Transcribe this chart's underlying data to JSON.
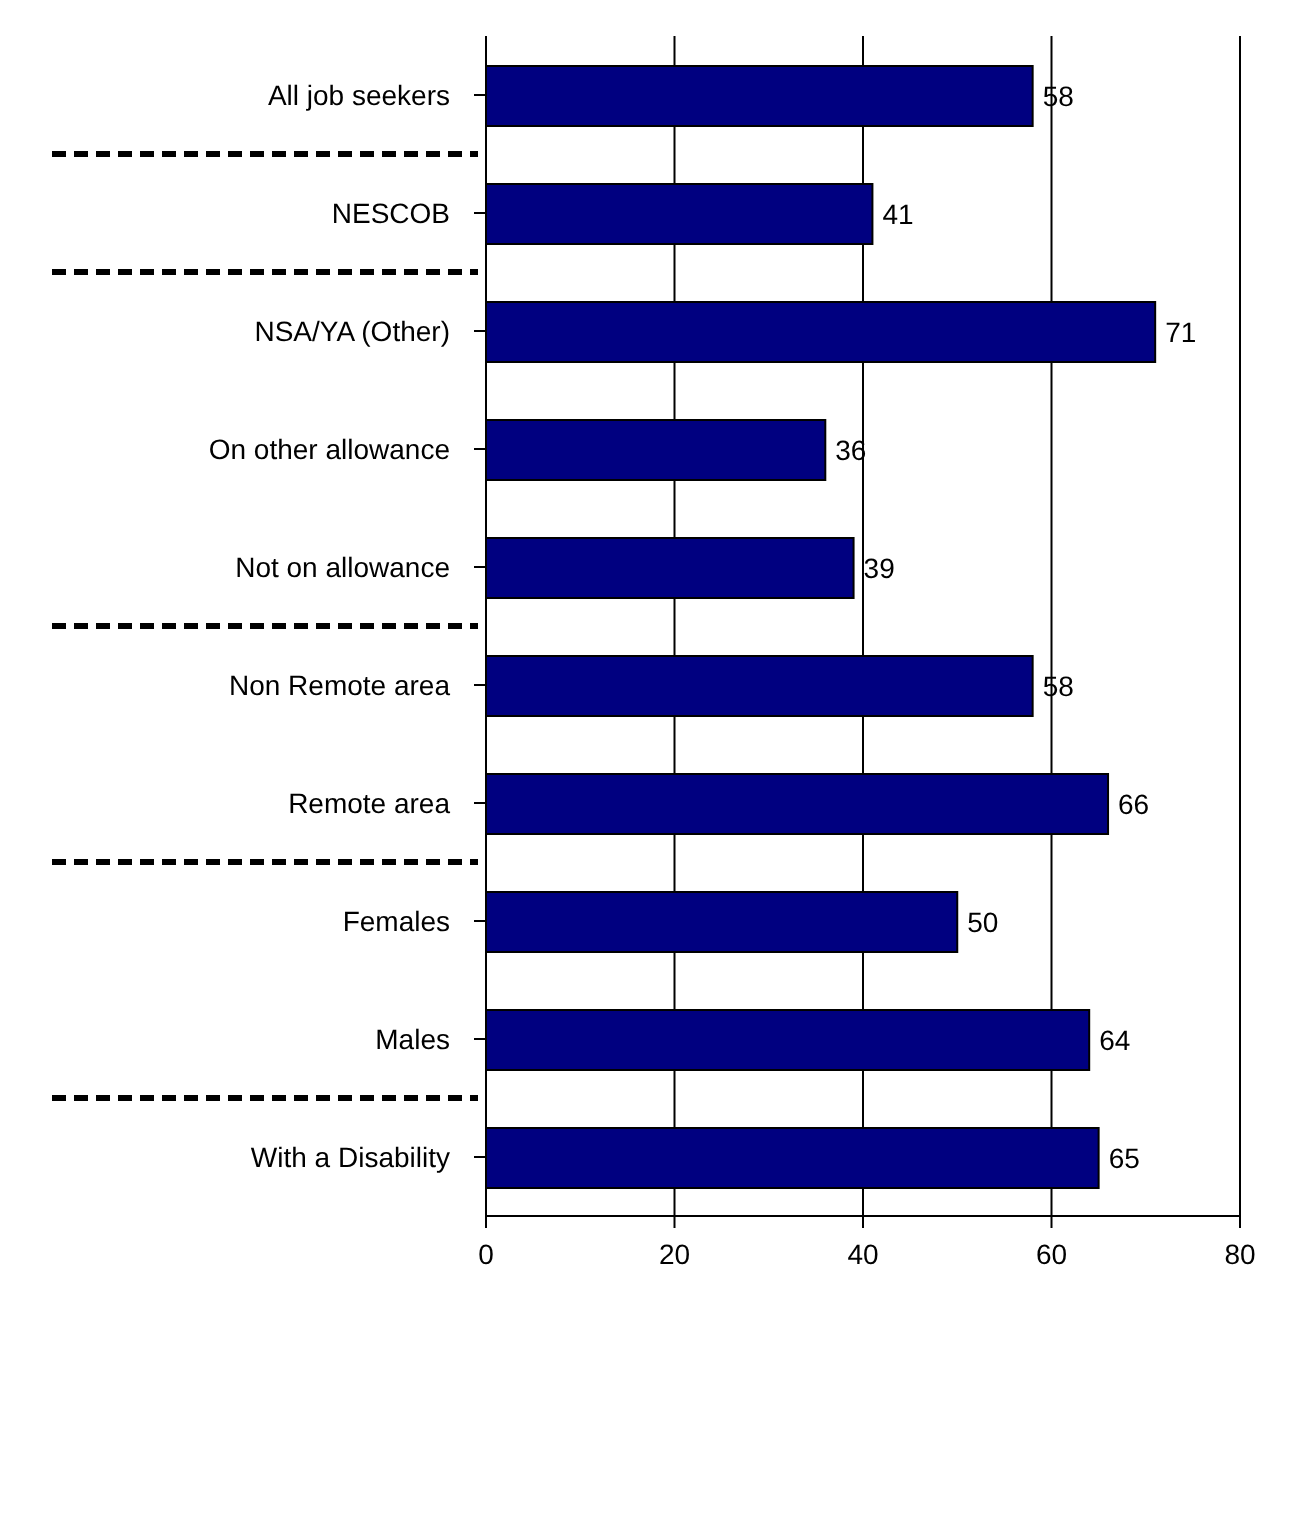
{
  "chart_data": {
    "type": "bar",
    "orientation": "horizontal",
    "categories": [
      "All job seekers",
      "NESCOB",
      "NSA/YA (Other)",
      "On other allowance",
      "Not on allowance",
      "Non Remote area",
      "Remote area",
      "Females",
      "Males",
      "With a Disability"
    ],
    "values": [
      58,
      41,
      71,
      36,
      39,
      58,
      66,
      50,
      64,
      65
    ],
    "color": "#000080",
    "xlim": [
      0,
      80
    ],
    "xticks": [
      0,
      20,
      40,
      60,
      80
    ],
    "grid": "x",
    "data_labels": true,
    "legend": false
  }
}
